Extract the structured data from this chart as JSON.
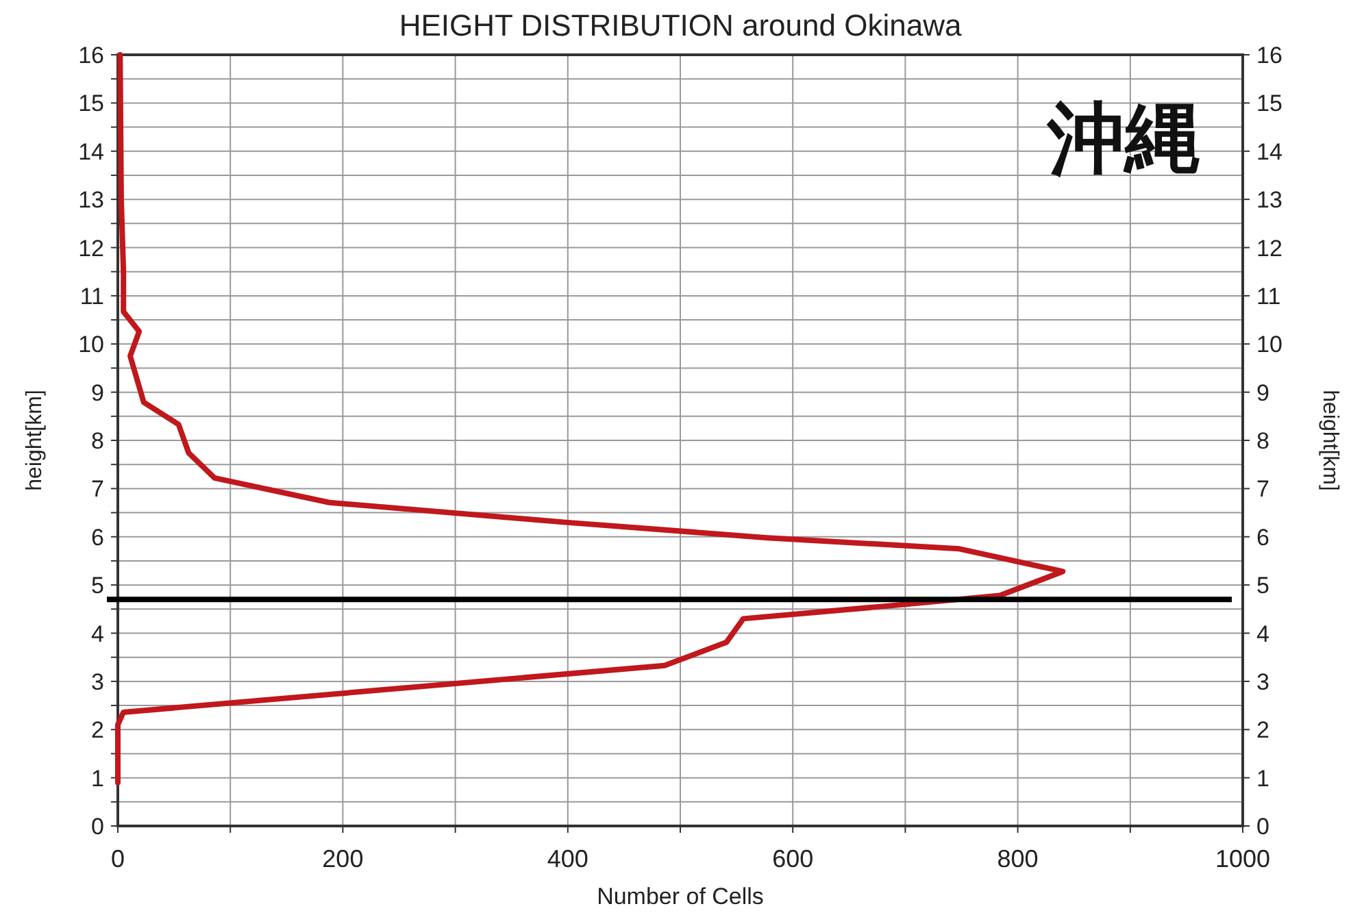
{
  "chart_data": {
    "type": "line",
    "title": "HEIGHT DISTRIBUTION around Okinawa",
    "xlabel": "Number of Cells",
    "ylabel": "height[km]",
    "y2label": "height[km]",
    "annotations": [
      "沖縄"
    ],
    "xlim": [
      0,
      1000
    ],
    "xticks": [
      0,
      {
        "value": 100,
        "label": null
      },
      200,
      {
        "value": 300,
        "label": null
      },
      400,
      {
        "value": 500,
        "label": null
      },
      600,
      {
        "value": 700,
        "label": null
      },
      800,
      {
        "value": 900,
        "label": null
      },
      1000
    ],
    "ylim": [
      0,
      16
    ],
    "yticks": [
      0,
      {
        "value": 0.5,
        "label": null
      },
      1,
      {
        "value": 1.5,
        "label": null
      },
      2,
      {
        "value": 2.5,
        "label": null
      },
      3,
      {
        "value": 3.5,
        "label": null
      },
      4,
      {
        "value": 4.5,
        "label": null
      },
      5,
      {
        "value": 5.5,
        "label": null
      },
      6,
      {
        "value": 6.5,
        "label": null
      },
      7,
      {
        "value": 7.5,
        "label": null
      },
      8,
      {
        "value": 8.5,
        "label": null
      },
      9,
      {
        "value": 9.5,
        "label": null
      },
      10,
      {
        "value": 10.5,
        "label": null
      },
      11,
      {
        "value": 11.5,
        "label": null
      },
      12,
      {
        "value": 12.5,
        "label": null
      },
      13,
      {
        "value": 13.5,
        "label": null
      },
      14,
      {
        "value": 14.5,
        "label": null
      },
      15,
      {
        "value": 15.5,
        "label": null
      },
      16
    ],
    "y2lim": [
      0,
      16
    ],
    "y2ticks": [
      0,
      1,
      2,
      3,
      4,
      5,
      6,
      7,
      8,
      9,
      10,
      11,
      12,
      13,
      14,
      15,
      16
    ],
    "grid": true,
    "marker": "none",
    "line_style": "solid",
    "ref_lines": [
      {
        "axis": "y",
        "value": 4.7,
        "label": null,
        "color": "#000000"
      }
    ],
    "series": [
      {
        "color": "#c0181c",
        "x": [
          2,
          3,
          5,
          5,
          19,
          11,
          23,
          54,
          63,
          86,
          188,
          398,
          577,
          748,
          840,
          784,
          687,
          556,
          541,
          486,
          5,
          0,
          0
        ],
        "values": [
          16,
          13,
          11.5,
          10.67,
          10.26,
          9.75,
          8.79,
          8.33,
          7.74,
          7.22,
          6.71,
          6.3,
          5.98,
          5.75,
          5.28,
          4.78,
          4.57,
          4.3,
          3.81,
          3.33,
          2.36,
          2.1,
          0.9
        ]
      }
    ]
  }
}
